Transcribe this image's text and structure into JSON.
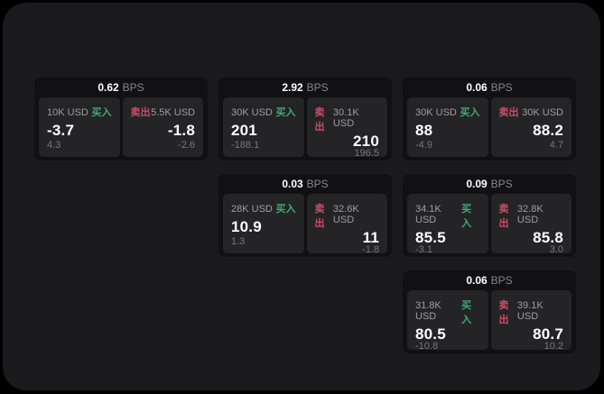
{
  "colors": {
    "page_bg": "#000000",
    "panel_bg": "#1a1a1c",
    "card_bg": "#111113",
    "tile_bg": "#242427",
    "buy_green": "#3fab6e",
    "sell_red": "#c94f63",
    "text_primary": "#ffffff",
    "text_secondary": "#9d9da3",
    "text_muted": "#76767c"
  },
  "labels": {
    "bps": "BPS",
    "buy": "买入",
    "sell": "卖出"
  },
  "cards": [
    {
      "bps": "0.62",
      "col": 1,
      "row": 1,
      "buy": {
        "amount": "10K USD",
        "price": "-3.7",
        "delta": "4.3"
      },
      "sell": {
        "amount": "5.5K USD",
        "price": "-1.8",
        "delta": "-2.6"
      }
    },
    {
      "bps": "2.92",
      "col": 2,
      "row": 1,
      "buy": {
        "amount": "30K USD",
        "price": "201",
        "delta": "-188.1"
      },
      "sell": {
        "amount": "30.1K USD",
        "price": "210",
        "delta": "196.5"
      }
    },
    {
      "bps": "0.06",
      "col": 3,
      "row": 1,
      "buy": {
        "amount": "30K USD",
        "price": "88",
        "delta": "-4.9"
      },
      "sell": {
        "amount": "30K USD",
        "price": "88.2",
        "delta": "4.7"
      }
    },
    {
      "bps": "0.03",
      "col": 2,
      "row": 2,
      "buy": {
        "amount": "28K USD",
        "price": "10.9",
        "delta": "1.3"
      },
      "sell": {
        "amount": "32.6K USD",
        "price": "11",
        "delta": "-1.8"
      }
    },
    {
      "bps": "0.09",
      "col": 3,
      "row": 2,
      "buy": {
        "amount": "34.1K USD",
        "price": "85.5",
        "delta": "-3.1"
      },
      "sell": {
        "amount": "32.8K USD",
        "price": "85.8",
        "delta": "3.0"
      }
    },
    {
      "bps": "0.06",
      "col": 3,
      "row": 3,
      "buy": {
        "amount": "31.8K USD",
        "price": "80.5",
        "delta": "-10.8"
      },
      "sell": {
        "amount": "39.1K USD",
        "price": "80.7",
        "delta": "10.2"
      }
    }
  ]
}
